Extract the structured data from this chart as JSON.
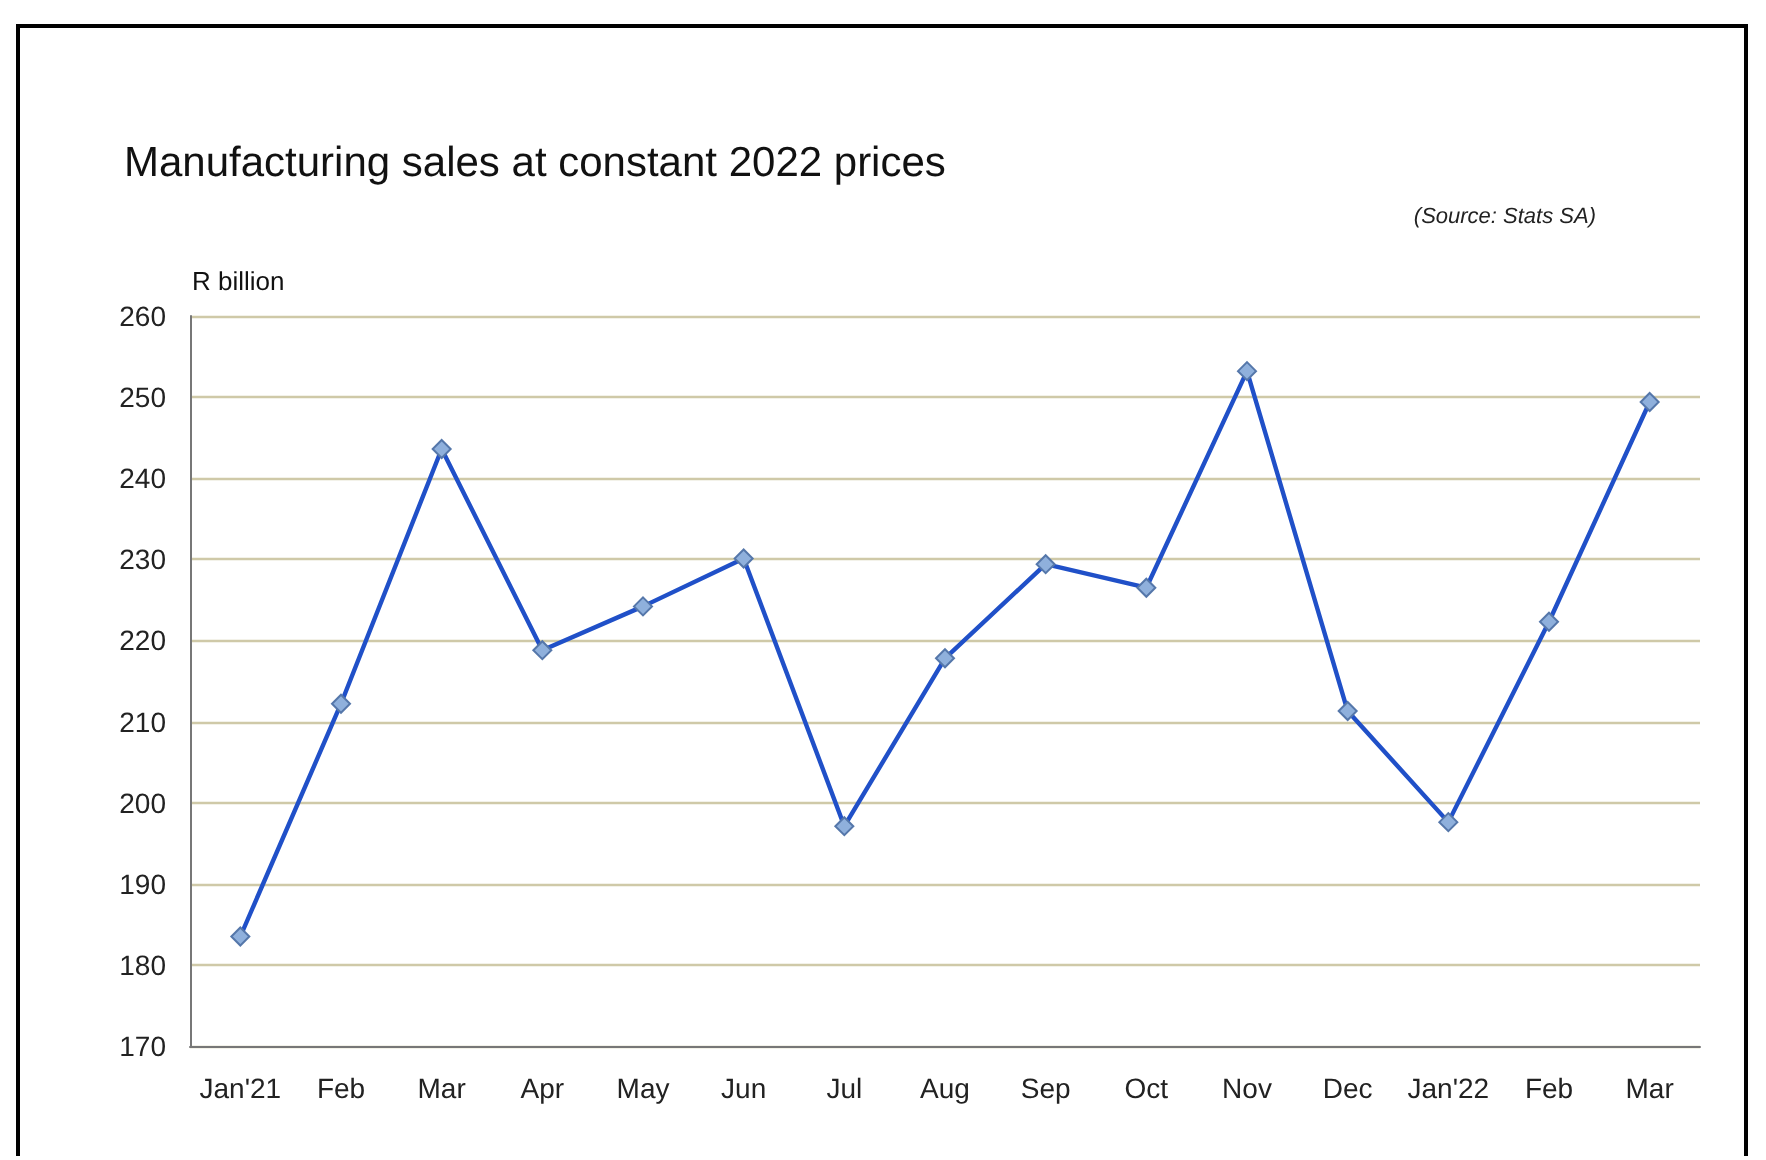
{
  "chart_data": {
    "type": "line",
    "title": "Manufacturing sales at constant 2022 prices",
    "ylabel": "R billion",
    "annotations": [
      "(Source: Stats SA)"
    ],
    "categories": [
      "Jan'21",
      "Feb",
      "Mar",
      "Apr",
      "May",
      "Jun",
      "Jul",
      "Aug",
      "Sep",
      "Oct",
      "Nov",
      "Dec",
      "Jan'22",
      "Feb",
      "Mar"
    ],
    "series": [
      {
        "color": "#2050c8",
        "values": [
          183.5,
          212.2,
          243.6,
          218.8,
          224.2,
          230.1,
          197.1,
          217.8,
          229.4,
          226.5,
          253.2,
          211.3,
          197.6,
          222.3,
          249.4
        ]
      }
    ],
    "ylim": [
      170,
      260
    ],
    "yticks": [
      170,
      180,
      190,
      200,
      210,
      220,
      230,
      240,
      250,
      260
    ],
    "grid": "y",
    "marker": "diamond",
    "line_style": "solid"
  }
}
